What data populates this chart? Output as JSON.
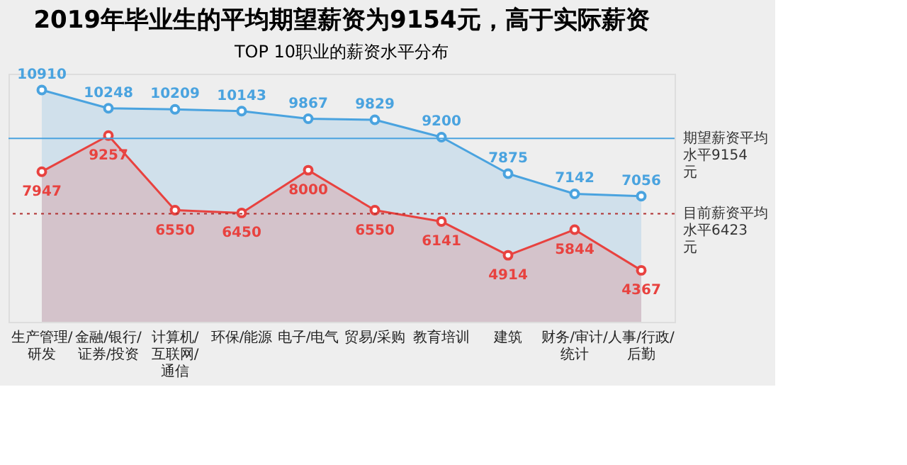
{
  "chart_data": {
    "type": "area",
    "title": "2019年毕业生的平均期望薪资为9154元，高于实际薪资",
    "subtitle": "TOP 10职业的薪资水平分布",
    "categories": [
      "生产管理/研发",
      "金融/银行/证券/投资",
      "计算机/互联网/通信",
      "环保/能源",
      "电子/电气",
      "贸易/采购",
      "教育培训",
      "建筑",
      "财务/审计/统计",
      "人事/行政/后勤"
    ],
    "series": [
      {
        "color": "#4aa3df",
        "values": [
          10910,
          10248,
          10209,
          10143,
          9867,
          9829,
          9200,
          7875,
          7142,
          7056
        ]
      },
      {
        "color": "#e8423f",
        "values": [
          7947,
          9257,
          6550,
          6450,
          8000,
          6550,
          6141,
          4914,
          5844,
          4367
        ]
      }
    ],
    "ylim": [
      2500,
      11500
    ],
    "tick_labels": "x",
    "data_labels": true,
    "marker": "circle",
    "ref_lines": [
      {
        "axis": "y",
        "value": 9154,
        "label": "期望薪资平均水平9154元",
        "color": "#4aa3df",
        "line_style": "solid"
      },
      {
        "axis": "y",
        "value": 6423,
        "label": "目前薪资平均水平6423元",
        "color": "#b03030",
        "line_style": "dotted"
      }
    ]
  }
}
